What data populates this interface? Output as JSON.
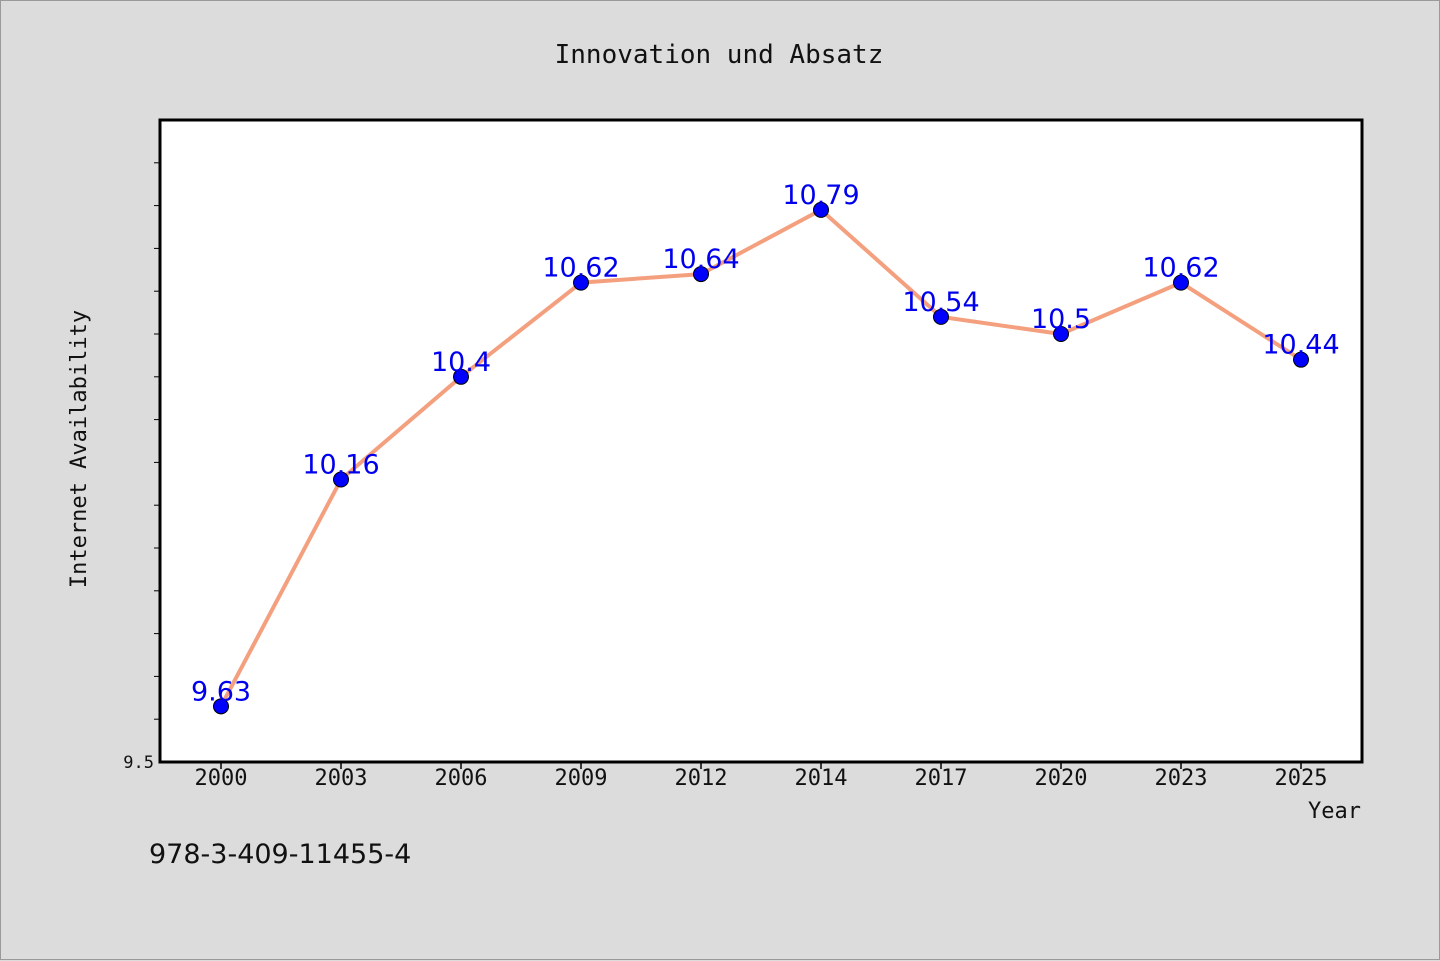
{
  "footer_text": "978-3-409-11455-4",
  "colors": {
    "background": "#dcdcdc",
    "plot_bg": "#ffffff",
    "line": "#f4a07f",
    "marker": "#0000ff",
    "label": "#0000ee"
  },
  "chart_data": {
    "type": "line",
    "title": "Innovation und Absatz",
    "xlabel": "Year",
    "ylabel": "Internet Availability",
    "categories": [
      "2000",
      "2003",
      "2006",
      "2009",
      "2012",
      "2014",
      "2017",
      "2020",
      "2023",
      "2025"
    ],
    "series": [
      {
        "values": [
          9.63,
          10.16,
          10.4,
          10.62,
          10.64,
          10.79,
          10.54,
          10.5,
          10.62,
          10.44
        ]
      }
    ],
    "data_labels": [
      "9.63",
      "10.16",
      "10.4",
      "10.62",
      "10.64",
      "10.79",
      "10.54",
      "10.5",
      "10.62",
      "10.44"
    ],
    "ylim": [
      9.5,
      11.0
    ],
    "yticks": [
      9.5
    ],
    "ytick_labels": [
      "9.5"
    ],
    "grid": false,
    "legend": "none"
  }
}
